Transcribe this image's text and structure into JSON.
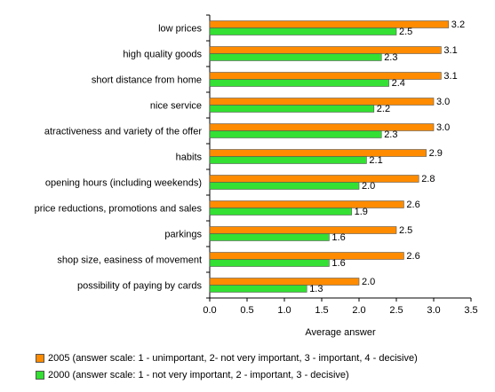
{
  "chart_data": {
    "type": "bar",
    "orientation": "horizontal",
    "categories": [
      "low prices",
      "high quality goods",
      "short distance from home",
      "nice service",
      "atractiveness and variety of the offer",
      "habits",
      "opening hours (including weekends)",
      "price reductions, promotions and sales",
      "parkings",
      "shop size, easiness of movement",
      "possibility of paying by cards"
    ],
    "series": [
      {
        "name": "2005 (answer scale: 1 - unimportant, 2- not very important, 3 - important, 4 - decisive)",
        "color": "#FF8C00",
        "values": [
          3.2,
          3.1,
          3.1,
          3.0,
          3.0,
          2.9,
          2.8,
          2.6,
          2.5,
          2.6,
          2.0
        ],
        "labels": [
          "3.2",
          "3.1",
          "3.1",
          "3.0",
          "3.0",
          "2.9",
          "2.8",
          "2.6",
          "2.5",
          "2.6",
          "2.0"
        ]
      },
      {
        "name": "2000 (answer scale: 1 - not very important, 2 - important, 3 - decisive)",
        "color": "#33E033",
        "values": [
          2.5,
          2.3,
          2.4,
          2.2,
          2.3,
          2.1,
          2.0,
          1.9,
          1.6,
          1.6,
          1.3
        ],
        "labels": [
          "2.5",
          "2.3",
          "2.4",
          "2.2",
          "2.3",
          "2.1",
          "2.0",
          "1.9",
          "1.6",
          "1.6",
          "1.3"
        ]
      }
    ],
    "xlabel": "Average answer",
    "ylabel": "",
    "xlim": [
      0,
      3.5
    ],
    "xticks": [
      "0.0",
      "0.5",
      "1.0",
      "1.5",
      "2.0",
      "2.5",
      "3.0",
      "3.5"
    ],
    "grid": false,
    "legend_position": "bottom"
  }
}
